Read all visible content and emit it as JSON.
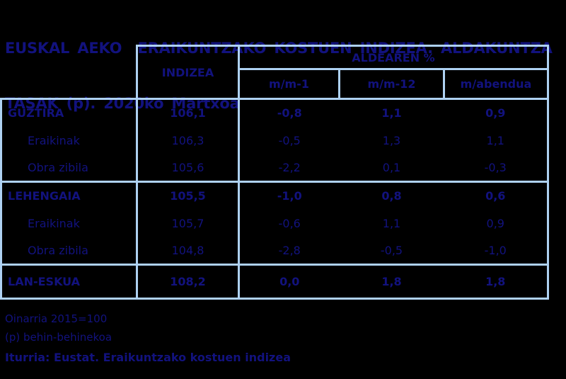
{
  "title": {
    "line1": "EUSKAL AEKO  ERAIKUNTZAKO KOSTUEN INDIZEA. ALDAKUNTZA",
    "line2": "TASAK (p). 2020ko Martxoa"
  },
  "chart_data": {
    "type": "table",
    "title": "EUSKAL AEKO ERAIKUNTZAKO KOSTUEN INDIZEA. ALDAKUNTZA TASAK (p). 2020ko Martxoa",
    "index_column_header": "INDIZEA",
    "pct_group_header": "ALDEAREN %",
    "pct_sub_headers": [
      "m/m-1",
      "m/m-12",
      "m/abendua"
    ],
    "rows": [
      {
        "label": "GUZTIRA",
        "level": "total",
        "indizea": "106,1",
        "values": [
          "-0,8",
          "1,1",
          "0,9"
        ]
      },
      {
        "label": "Eraikinak",
        "level": "sub",
        "indizea": "106,3",
        "values": [
          "-0,5",
          "1,3",
          "1,1"
        ]
      },
      {
        "label": "Obra zibila",
        "level": "sub",
        "indizea": "105,6",
        "values": [
          "-2,2",
          "0,1",
          "-0,3"
        ]
      },
      {
        "label": "LEHENGAIA",
        "level": "total",
        "indizea": "105,5",
        "values": [
          "-1,0",
          "0,8",
          "0,6"
        ]
      },
      {
        "label": "Eraikinak",
        "level": "sub",
        "indizea": "105,7",
        "values": [
          "-0,6",
          "1,1",
          "0,9"
        ]
      },
      {
        "label": "Obra zibila",
        "level": "sub",
        "indizea": "104,8",
        "values": [
          "-2,8",
          "-0,5",
          "-1,0"
        ]
      },
      {
        "label": "LAN-ESKUA",
        "level": "total",
        "indizea": "108,2",
        "values": [
          "0,0",
          "1,8",
          "1,8"
        ]
      }
    ]
  },
  "footnotes": {
    "base": "Oinarria 2015=100",
    "provisional": "(p) behin-behinekoa",
    "source": "Iturria: Eustat. Eraikuntzako kostuen indizea"
  },
  "colors": {
    "background": "#000000",
    "text_navy": "#12127E",
    "border_blue": "#AED1F2"
  }
}
